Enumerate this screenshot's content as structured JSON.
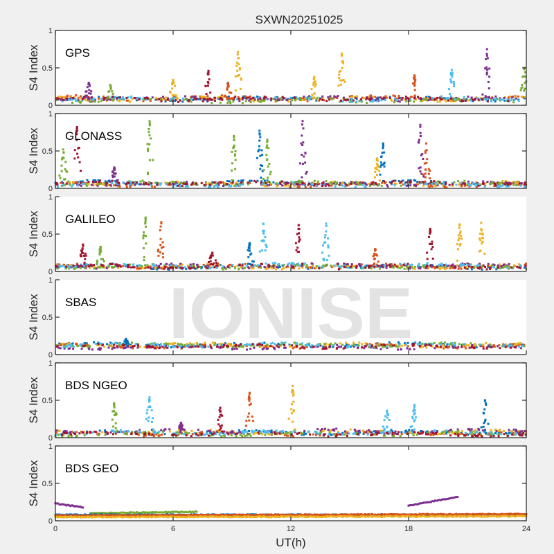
{
  "chart_data": {
    "type": "scatter",
    "title": "SXWN20251025",
    "xlabel": "UT(h)",
    "ylabel": "S4 Index",
    "xlim": [
      0,
      24
    ],
    "ylim": [
      0,
      1
    ],
    "xticks": [
      "0",
      "6",
      "12",
      "18",
      "24"
    ],
    "xtick_values": [
      0,
      6,
      12,
      18,
      24
    ],
    "yticks": [
      "0",
      "0.5",
      "1"
    ],
    "ytick_values": [
      0,
      0.5,
      1
    ],
    "watermark": "IONISE",
    "colors": [
      "#0072bd",
      "#d95319",
      "#edb120",
      "#7e2f8e",
      "#77ac30",
      "#4dbeee",
      "#a2142f"
    ],
    "panels": [
      {
        "label": "GPS",
        "box": "full",
        "baseline": 0.07,
        "noise": 0.04,
        "peaks": [
          {
            "x": 1.7,
            "y": 0.3,
            "c": 3
          },
          {
            "x": 2.8,
            "y": 0.27,
            "c": 4
          },
          {
            "x": 6.0,
            "y": 0.34,
            "c": 2
          },
          {
            "x": 7.8,
            "y": 0.46,
            "c": 6
          },
          {
            "x": 9.3,
            "y": 0.71,
            "c": 2
          },
          {
            "x": 8.8,
            "y": 0.3,
            "c": 1
          },
          {
            "x": 13.2,
            "y": 0.38,
            "c": 2
          },
          {
            "x": 14.6,
            "y": 0.69,
            "c": 2
          },
          {
            "x": 18.3,
            "y": 0.4,
            "c": 1
          },
          {
            "x": 20.2,
            "y": 0.47,
            "c": 5
          },
          {
            "x": 22.0,
            "y": 0.75,
            "c": 3
          },
          {
            "x": 23.9,
            "y": 0.5,
            "c": 4
          }
        ]
      },
      {
        "label": "GLONASS",
        "box": "full",
        "baseline": 0.06,
        "noise": 0.035,
        "peaks": [
          {
            "x": 0.4,
            "y": 0.52,
            "c": 4
          },
          {
            "x": 1.1,
            "y": 0.82,
            "c": 6
          },
          {
            "x": 3.0,
            "y": 0.28,
            "c": 3
          },
          {
            "x": 4.8,
            "y": 0.9,
            "c": 4
          },
          {
            "x": 9.1,
            "y": 0.7,
            "c": 4
          },
          {
            "x": 10.4,
            "y": 0.77,
            "c": 0
          },
          {
            "x": 10.8,
            "y": 0.65,
            "c": 4
          },
          {
            "x": 12.6,
            "y": 0.9,
            "c": 3
          },
          {
            "x": 16.7,
            "y": 0.6,
            "c": 0
          },
          {
            "x": 18.6,
            "y": 0.85,
            "c": 3
          },
          {
            "x": 18.9,
            "y": 0.6,
            "c": 1
          },
          {
            "x": 16.4,
            "y": 0.4,
            "c": 2
          }
        ]
      },
      {
        "label": "GALILEO",
        "box": "open",
        "baseline": 0.07,
        "noise": 0.035,
        "peaks": [
          {
            "x": 1.4,
            "y": 0.36,
            "c": 6
          },
          {
            "x": 2.3,
            "y": 0.33,
            "c": 4
          },
          {
            "x": 4.6,
            "y": 0.72,
            "c": 4
          },
          {
            "x": 5.4,
            "y": 0.66,
            "c": 1
          },
          {
            "x": 8.0,
            "y": 0.25,
            "c": 6
          },
          {
            "x": 9.9,
            "y": 0.38,
            "c": 0
          },
          {
            "x": 10.6,
            "y": 0.64,
            "c": 5
          },
          {
            "x": 12.4,
            "y": 0.62,
            "c": 6
          },
          {
            "x": 13.8,
            "y": 0.64,
            "c": 5
          },
          {
            "x": 16.3,
            "y": 0.3,
            "c": 1
          },
          {
            "x": 19.1,
            "y": 0.57,
            "c": 6
          },
          {
            "x": 20.6,
            "y": 0.63,
            "c": 2
          },
          {
            "x": 21.7,
            "y": 0.65,
            "c": 2
          }
        ]
      },
      {
        "label": "SBAS",
        "box": "open",
        "baseline": 0.11,
        "noise": 0.03,
        "peaks": [
          {
            "x": 3.6,
            "y": 0.21,
            "c": 0
          }
        ]
      },
      {
        "label": "BDS NGEO",
        "box": "full",
        "baseline": 0.06,
        "noise": 0.035,
        "peaks": [
          {
            "x": 3.0,
            "y": 0.46,
            "c": 4
          },
          {
            "x": 4.8,
            "y": 0.54,
            "c": 5
          },
          {
            "x": 6.4,
            "y": 0.2,
            "c": 3
          },
          {
            "x": 8.4,
            "y": 0.4,
            "c": 6
          },
          {
            "x": 9.9,
            "y": 0.6,
            "c": 1
          },
          {
            "x": 12.1,
            "y": 0.69,
            "c": 2
          },
          {
            "x": 16.9,
            "y": 0.36,
            "c": 5
          },
          {
            "x": 18.3,
            "y": 0.44,
            "c": 5
          },
          {
            "x": 21.9,
            "y": 0.5,
            "c": 0
          }
        ]
      },
      {
        "label": "BDS GEO",
        "box": "full",
        "baseline": 0.07,
        "noise": 0.012,
        "peaks": [],
        "tracks": [
          {
            "x0": 0.0,
            "x1": 1.4,
            "y0": 0.23,
            "y1": 0.18,
            "c": 3
          },
          {
            "x0": 1.8,
            "x1": 7.2,
            "y0": 0.1,
            "y1": 0.12,
            "c": 4
          },
          {
            "x0": 18.0,
            "x1": 20.5,
            "y0": 0.2,
            "y1": 0.32,
            "c": 3
          },
          {
            "x0": 0.0,
            "x1": 24.0,
            "y0": 0.08,
            "y1": 0.08,
            "c": 0
          },
          {
            "x0": 0.0,
            "x1": 24.0,
            "y0": 0.07,
            "y1": 0.09,
            "c": 1
          },
          {
            "x0": 0.0,
            "x1": 24.0,
            "y0": 0.05,
            "y1": 0.06,
            "c": 2
          }
        ]
      }
    ]
  }
}
